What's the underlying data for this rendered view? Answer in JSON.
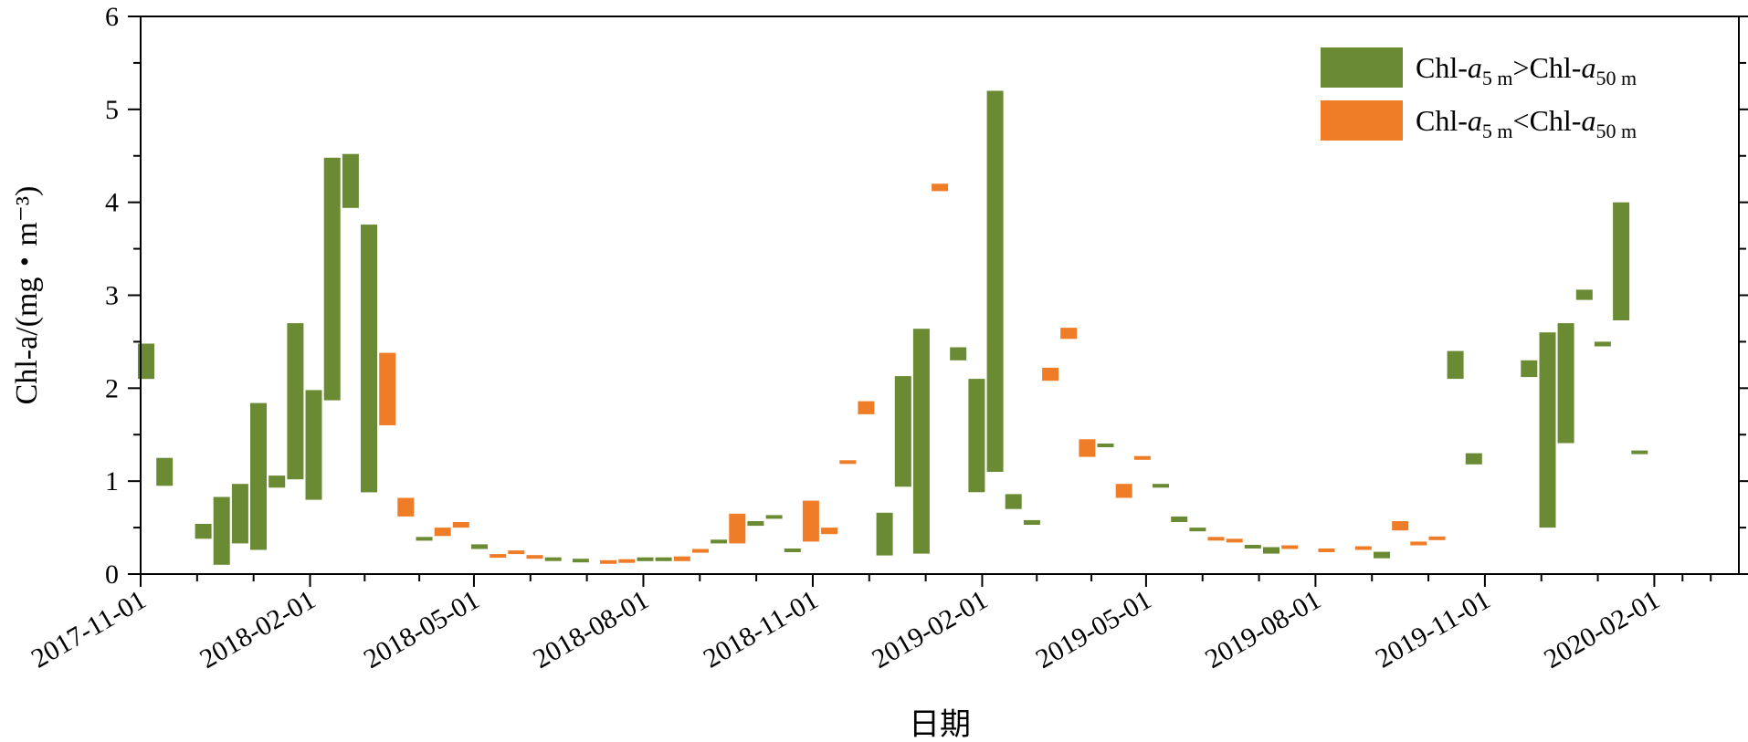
{
  "chart_data": {
    "type": "floating-bar",
    "y_label": "Chl-a/(mg・m⁻³)",
    "x_label": "日期",
    "ylim": [
      0,
      6
    ],
    "y_ticks": [
      "0",
      "1",
      "2",
      "3",
      "4",
      "5",
      "6"
    ],
    "x_ticks": [
      "2017-11-01",
      "2018-02-01",
      "2018-05-01",
      "2018-08-01",
      "2018-11-01",
      "2019-02-01",
      "2019-05-01",
      "2019-08-01",
      "2019-11-01",
      "2020-02-01"
    ],
    "x_range": [
      "2017-11-01",
      "2020-02-01"
    ],
    "grid": false,
    "legend_position": "top-right",
    "colors": {
      "shallow_higher": "#6a8b33",
      "deep_higher": "#ef7d27"
    },
    "legend": [
      {
        "key": "shallow_higher",
        "base": "Chl-",
        "a": "a",
        "sub1": "5 m",
        "op": ">",
        "sub2": "50 m"
      },
      {
        "key": "deep_higher",
        "base": "Chl-",
        "a": "a",
        "sub1": "5 m",
        "op": "<",
        "sub2": "50 m"
      }
    ],
    "bars": [
      {
        "date": "2017-11-04",
        "low": 2.1,
        "high": 2.48,
        "series": "shallow_higher"
      },
      {
        "date": "2017-11-14",
        "low": 0.95,
        "high": 1.25,
        "series": "shallow_higher"
      },
      {
        "date": "2017-12-05",
        "low": 0.38,
        "high": 0.54,
        "series": "shallow_higher"
      },
      {
        "date": "2017-12-15",
        "low": 0.1,
        "high": 0.83,
        "series": "shallow_higher"
      },
      {
        "date": "2017-12-25",
        "low": 0.33,
        "high": 0.97,
        "series": "shallow_higher"
      },
      {
        "date": "2018-01-04",
        "low": 0.26,
        "high": 1.84,
        "series": "shallow_higher"
      },
      {
        "date": "2018-01-14",
        "low": 0.93,
        "high": 1.06,
        "series": "shallow_higher"
      },
      {
        "date": "2018-01-24",
        "low": 1.02,
        "high": 2.7,
        "series": "shallow_higher"
      },
      {
        "date": "2018-02-03",
        "low": 0.8,
        "high": 1.98,
        "series": "shallow_higher"
      },
      {
        "date": "2018-02-13",
        "low": 1.87,
        "high": 4.48,
        "series": "shallow_higher"
      },
      {
        "date": "2018-02-23",
        "low": 3.94,
        "high": 4.52,
        "series": "shallow_higher"
      },
      {
        "date": "2018-03-05",
        "low": 0.88,
        "high": 3.76,
        "series": "shallow_higher"
      },
      {
        "date": "2018-03-15",
        "low": 1.6,
        "high": 2.38,
        "series": "deep_higher"
      },
      {
        "date": "2018-03-25",
        "low": 0.62,
        "high": 0.82,
        "series": "deep_higher"
      },
      {
        "date": "2018-04-04",
        "low": 0.36,
        "high": 0.4,
        "series": "shallow_higher"
      },
      {
        "date": "2018-04-14",
        "low": 0.41,
        "high": 0.5,
        "series": "deep_higher"
      },
      {
        "date": "2018-04-24",
        "low": 0.5,
        "high": 0.56,
        "series": "deep_higher"
      },
      {
        "date": "2018-05-04",
        "low": 0.27,
        "high": 0.32,
        "series": "shallow_higher"
      },
      {
        "date": "2018-05-14",
        "low": 0.18,
        "high": 0.21,
        "series": "deep_higher"
      },
      {
        "date": "2018-05-24",
        "low": 0.22,
        "high": 0.25,
        "series": "deep_higher"
      },
      {
        "date": "2018-06-03",
        "low": 0.17,
        "high": 0.2,
        "series": "deep_higher"
      },
      {
        "date": "2018-06-13",
        "low": 0.15,
        "high": 0.17,
        "series": "shallow_higher"
      },
      {
        "date": "2018-06-28",
        "low": 0.13,
        "high": 0.16,
        "series": "shallow_higher"
      },
      {
        "date": "2018-07-13",
        "low": 0.12,
        "high": 0.14,
        "series": "deep_higher"
      },
      {
        "date": "2018-07-23",
        "low": 0.13,
        "high": 0.15,
        "series": "deep_higher"
      },
      {
        "date": "2018-08-02",
        "low": 0.14,
        "high": 0.18,
        "series": "shallow_higher"
      },
      {
        "date": "2018-08-12",
        "low": 0.14,
        "high": 0.18,
        "series": "shallow_higher"
      },
      {
        "date": "2018-08-22",
        "low": 0.14,
        "high": 0.19,
        "series": "deep_higher"
      },
      {
        "date": "2018-09-01",
        "low": 0.23,
        "high": 0.27,
        "series": "deep_higher"
      },
      {
        "date": "2018-09-11",
        "low": 0.33,
        "high": 0.37,
        "series": "shallow_higher"
      },
      {
        "date": "2018-09-21",
        "low": 0.33,
        "high": 0.65,
        "series": "deep_higher"
      },
      {
        "date": "2018-10-01",
        "low": 0.52,
        "high": 0.57,
        "series": "shallow_higher"
      },
      {
        "date": "2018-10-11",
        "low": 0.6,
        "high": 0.63,
        "series": "shallow_higher"
      },
      {
        "date": "2018-10-21",
        "low": 0.24,
        "high": 0.27,
        "series": "shallow_higher"
      },
      {
        "date": "2018-10-31",
        "low": 0.35,
        "high": 0.79,
        "series": "deep_higher"
      },
      {
        "date": "2018-11-10",
        "low": 0.43,
        "high": 0.5,
        "series": "deep_higher"
      },
      {
        "date": "2018-11-20",
        "low": 1.19,
        "high": 1.22,
        "series": "deep_higher"
      },
      {
        "date": "2018-11-30",
        "low": 1.72,
        "high": 1.86,
        "series": "deep_higher"
      },
      {
        "date": "2018-12-10",
        "low": 0.2,
        "high": 0.66,
        "series": "shallow_higher"
      },
      {
        "date": "2018-12-20",
        "low": 0.94,
        "high": 2.13,
        "series": "shallow_higher"
      },
      {
        "date": "2018-12-30",
        "low": 0.22,
        "high": 2.64,
        "series": "shallow_higher"
      },
      {
        "date": "2019-01-09",
        "low": 4.12,
        "high": 4.2,
        "series": "deep_higher"
      },
      {
        "date": "2019-01-19",
        "low": 2.3,
        "high": 2.44,
        "series": "shallow_higher"
      },
      {
        "date": "2019-01-29",
        "low": 0.88,
        "high": 2.1,
        "series": "shallow_higher"
      },
      {
        "date": "2019-02-08",
        "low": 1.1,
        "high": 5.2,
        "series": "shallow_higher"
      },
      {
        "date": "2019-02-18",
        "low": 0.7,
        "high": 0.86,
        "series": "shallow_higher"
      },
      {
        "date": "2019-02-28",
        "low": 0.53,
        "high": 0.58,
        "series": "shallow_higher"
      },
      {
        "date": "2019-03-10",
        "low": 2.08,
        "high": 2.22,
        "series": "deep_higher"
      },
      {
        "date": "2019-03-20",
        "low": 2.53,
        "high": 2.65,
        "series": "deep_higher"
      },
      {
        "date": "2019-03-30",
        "low": 1.26,
        "high": 1.45,
        "series": "deep_higher"
      },
      {
        "date": "2019-04-09",
        "low": 1.37,
        "high": 1.4,
        "series": "shallow_higher"
      },
      {
        "date": "2019-04-19",
        "low": 0.82,
        "high": 0.97,
        "series": "deep_higher"
      },
      {
        "date": "2019-04-29",
        "low": 1.23,
        "high": 1.27,
        "series": "deep_higher"
      },
      {
        "date": "2019-05-09",
        "low": 0.93,
        "high": 0.97,
        "series": "shallow_higher"
      },
      {
        "date": "2019-05-19",
        "low": 0.56,
        "high": 0.62,
        "series": "shallow_higher"
      },
      {
        "date": "2019-05-29",
        "low": 0.46,
        "high": 0.5,
        "series": "shallow_higher"
      },
      {
        "date": "2019-06-08",
        "low": 0.37,
        "high": 0.39,
        "series": "deep_higher"
      },
      {
        "date": "2019-06-18",
        "low": 0.34,
        "high": 0.38,
        "series": "deep_higher"
      },
      {
        "date": "2019-06-28",
        "low": 0.28,
        "high": 0.31,
        "series": "shallow_higher"
      },
      {
        "date": "2019-07-08",
        "low": 0.22,
        "high": 0.29,
        "series": "shallow_higher"
      },
      {
        "date": "2019-07-18",
        "low": 0.28,
        "high": 0.3,
        "series": "deep_higher"
      },
      {
        "date": "2019-08-07",
        "low": 0.24,
        "high": 0.27,
        "series": "deep_higher"
      },
      {
        "date": "2019-08-27",
        "low": 0.27,
        "high": 0.29,
        "series": "deep_higher"
      },
      {
        "date": "2019-09-06",
        "low": 0.17,
        "high": 0.24,
        "series": "shallow_higher"
      },
      {
        "date": "2019-09-16",
        "low": 0.47,
        "high": 0.57,
        "series": "deep_higher"
      },
      {
        "date": "2019-09-26",
        "low": 0.31,
        "high": 0.35,
        "series": "deep_higher"
      },
      {
        "date": "2019-10-06",
        "low": 0.37,
        "high": 0.4,
        "series": "deep_higher"
      },
      {
        "date": "2019-10-16",
        "low": 2.1,
        "high": 2.4,
        "series": "shallow_higher"
      },
      {
        "date": "2019-10-26",
        "low": 1.18,
        "high": 1.3,
        "series": "shallow_higher"
      },
      {
        "date": "2019-11-25",
        "low": 2.12,
        "high": 2.3,
        "series": "shallow_higher"
      },
      {
        "date": "2019-12-05",
        "low": 0.5,
        "high": 2.6,
        "series": "shallow_higher"
      },
      {
        "date": "2019-12-15",
        "low": 1.41,
        "high": 2.7,
        "series": "shallow_higher"
      },
      {
        "date": "2019-12-25",
        "low": 2.95,
        "high": 3.06,
        "series": "shallow_higher"
      },
      {
        "date": "2020-01-04",
        "low": 2.45,
        "high": 2.5,
        "series": "shallow_higher"
      },
      {
        "date": "2020-01-14",
        "low": 2.73,
        "high": 4.0,
        "series": "shallow_higher"
      },
      {
        "date": "2020-01-24",
        "low": 1.3,
        "high": 1.32,
        "series": "shallow_higher"
      }
    ]
  }
}
